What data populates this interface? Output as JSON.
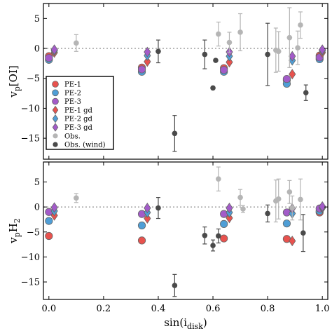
{
  "chart_data": [
    {
      "panel": "top",
      "type": "scatter",
      "ylabel": "v_p[OI]",
      "ylabel_main": "v",
      "ylabel_sub": "p",
      "ylabel_rest": "[OI]",
      "xlim": [
        -0.02,
        1.02
      ],
      "ylim": [
        -18.5,
        7.5
      ],
      "yticks": [
        5,
        0,
        -5,
        -10,
        -15
      ],
      "grid": false,
      "reference_line": 0,
      "legend": {
        "placement": "lower-left",
        "entries": [
          {
            "label": "PE-1",
            "series": "pe1"
          },
          {
            "label": "PE-2",
            "series": "pe2"
          },
          {
            "label": "PE-3",
            "series": "pe3"
          },
          {
            "label": "PE-1 gd",
            "series": "pe1gd"
          },
          {
            "label": "PE-2 gd",
            "series": "pe2gd"
          },
          {
            "label": "PE-3 gd",
            "series": "pe3gd"
          },
          {
            "label": "Obs.",
            "series": "obs"
          },
          {
            "label": "Obs. (wind)",
            "series": "wind"
          }
        ]
      },
      "series": [
        {
          "key": "pe1",
          "marker": "circle",
          "color": "#e8524e",
          "points": [
            [
              0.0,
              -1.3
            ],
            [
              0.34,
              -3.2
            ],
            [
              0.64,
              -3.3
            ],
            [
              0.87,
              -5.3
            ],
            [
              0.99,
              -1.2
            ]
          ]
        },
        {
          "key": "pe2",
          "marker": "circle",
          "color": "#4f9ed6",
          "points": [
            [
              0.0,
              -1.9
            ],
            [
              0.34,
              -3.9
            ],
            [
              0.64,
              -3.9
            ],
            [
              0.87,
              -5.9
            ],
            [
              0.99,
              -1.8
            ]
          ]
        },
        {
          "key": "pe3",
          "marker": "circle",
          "color": "#a35bc9",
          "points": [
            [
              0.0,
              -1.6
            ],
            [
              0.34,
              -3.5
            ],
            [
              0.64,
              -3.6
            ],
            [
              0.87,
              -5.1
            ],
            [
              0.99,
              -1.5
            ]
          ]
        },
        {
          "key": "pe1gd",
          "marker": "diamond",
          "color": "#e8524e",
          "points": [
            [
              0.02,
              -0.7
            ],
            [
              0.36,
              -2.2
            ],
            [
              0.66,
              -2.3
            ],
            [
              0.89,
              -4.3
            ],
            [
              1.0,
              -0.7
            ]
          ]
        },
        {
          "key": "pe2gd",
          "marker": "diamond",
          "color": "#4f9ed6",
          "points": [
            [
              0.02,
              -0.4
            ],
            [
              0.36,
              -1.2
            ],
            [
              0.66,
              -1.3
            ],
            [
              0.89,
              -2.0
            ],
            [
              1.0,
              -0.4
            ]
          ]
        },
        {
          "key": "pe3gd",
          "marker": "diamond",
          "color": "#a35bc9",
          "points": [
            [
              0.02,
              -0.2
            ],
            [
              0.36,
              -0.6
            ],
            [
              0.66,
              -0.6
            ],
            [
              0.89,
              -1.3
            ],
            [
              1.0,
              -0.2
            ]
          ]
        },
        {
          "key": "obs",
          "marker": "circle",
          "color": "#b5b5b5",
          "points": [
            [
              0.1,
              0.9,
              1.4
            ],
            [
              0.62,
              2.4,
              2.0
            ],
            [
              0.66,
              1.0,
              1.7
            ],
            [
              0.7,
              2.7,
              3.1
            ],
            [
              0.83,
              -0.3,
              3.7
            ],
            [
              0.84,
              -0.5,
              3.3
            ],
            [
              0.88,
              1.8,
              5.0
            ],
            [
              0.91,
              0.1,
              2.8
            ],
            [
              0.92,
              3.9,
              2.2
            ]
          ]
        },
        {
          "key": "wind",
          "marker": "circle",
          "color": "#4a4a4a",
          "points": [
            [
              0.4,
              -0.5,
              1.9
            ],
            [
              0.46,
              -14.2,
              3.0
            ],
            [
              0.57,
              -1.0,
              2.4
            ],
            [
              0.6,
              -6.6,
              0
            ],
            [
              0.61,
              -2.0,
              0
            ],
            [
              0.8,
              -1.0,
              5.2
            ],
            [
              0.94,
              -7.4,
              1.3
            ]
          ]
        }
      ]
    },
    {
      "panel": "bottom",
      "type": "scatter",
      "ylabel": "v_pH_2",
      "ylabel_main": "v",
      "ylabel_sub": "p",
      "ylabel_rest": "H",
      "ylabel_sub2": "2",
      "xlabel": "sin(i_disk)",
      "xlabel_main": "sin(i",
      "xlabel_sub": "disk",
      "xlabel_rest": ")",
      "xlim": [
        -0.02,
        1.02
      ],
      "ylim": [
        -18.5,
        9.0
      ],
      "xticks": [
        0.0,
        0.2,
        0.4,
        0.6,
        0.8,
        1.0
      ],
      "xticklabels": [
        "0.0",
        "0.2",
        "0.4",
        "0.6",
        "0.8",
        "1.0"
      ],
      "yticks": [
        5,
        0,
        -5,
        -10,
        -15
      ],
      "grid": false,
      "reference_line": 0,
      "series": [
        {
          "key": "pe1",
          "marker": "circle",
          "color": "#e8524e",
          "points": [
            [
              0.0,
              -5.8
            ],
            [
              0.34,
              -6.7
            ],
            [
              0.64,
              -6.3
            ],
            [
              0.87,
              -6.4
            ],
            [
              0.99,
              -1.1
            ]
          ]
        },
        {
          "key": "pe2",
          "marker": "circle",
          "color": "#4f9ed6",
          "points": [
            [
              0.0,
              -2.8
            ],
            [
              0.34,
              -3.7
            ],
            [
              0.64,
              -3.4
            ],
            [
              0.87,
              -3.3
            ],
            [
              0.99,
              -0.8
            ]
          ]
        },
        {
          "key": "pe3",
          "marker": "circle",
          "color": "#a35bc9",
          "points": [
            [
              0.0,
              -1.0
            ],
            [
              0.34,
              -1.4
            ],
            [
              0.64,
              -1.4
            ],
            [
              0.87,
              -1.1
            ],
            [
              0.99,
              -0.3
            ]
          ]
        },
        {
          "key": "pe1gd",
          "marker": "diamond",
          "color": "#e8524e",
          "points": [
            [
              0.02,
              -1.7
            ],
            [
              0.36,
              -2.3
            ],
            [
              0.66,
              -2.2
            ],
            [
              0.89,
              -6.8
            ],
            [
              1.0,
              -0.2
            ]
          ]
        },
        {
          "key": "pe2gd",
          "marker": "diamond",
          "color": "#4f9ed6",
          "points": [
            [
              0.02,
              -0.8
            ],
            [
              0.36,
              -1.1
            ],
            [
              0.66,
              -1.1
            ],
            [
              0.89,
              -1.3
            ],
            [
              1.0,
              -0.1
            ]
          ]
        },
        {
          "key": "pe3gd",
          "marker": "diamond",
          "color": "#a35bc9",
          "points": [
            [
              0.02,
              -0.1
            ],
            [
              0.36,
              -0.2
            ],
            [
              0.66,
              -0.2
            ],
            [
              0.89,
              -0.3
            ],
            [
              1.0,
              0.1
            ]
          ]
        },
        {
          "key": "obs",
          "marker": "circle",
          "color": "#b5b5b5",
          "points": [
            [
              0.1,
              1.8,
              0.9
            ],
            [
              0.62,
              5.6,
              2.4
            ],
            [
              0.7,
              1.9,
              1.6
            ],
            [
              0.71,
              -0.4,
              0.7
            ],
            [
              0.83,
              1.2,
              4.2
            ],
            [
              0.84,
              1.6,
              4.0
            ],
            [
              0.88,
              3.0,
              2.3
            ],
            [
              0.89,
              -0.2,
              2.4
            ],
            [
              0.92,
              1.5,
              4.1
            ]
          ]
        },
        {
          "key": "wind",
          "marker": "circle",
          "color": "#4a4a4a",
          "points": [
            [
              0.4,
              -0.2,
              2.1
            ],
            [
              0.46,
              -15.7,
              2.2
            ],
            [
              0.57,
              -5.7,
              1.7
            ],
            [
              0.6,
              -7.7,
              1.1
            ],
            [
              0.62,
              -5.8,
              1.4
            ],
            [
              0.8,
              -1.3,
              1.7
            ],
            [
              0.93,
              -5.2,
              3.7
            ]
          ]
        }
      ]
    }
  ]
}
